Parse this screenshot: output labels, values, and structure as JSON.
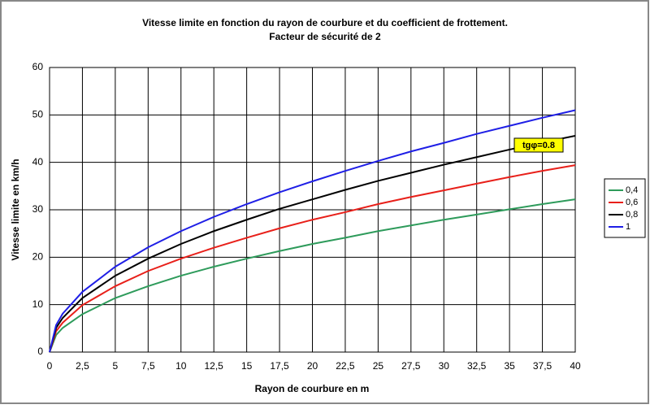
{
  "chart_data": {
    "type": "line",
    "title": "Vitesse limite en fonction du rayon de courbure et du coefficient de frottement.",
    "subtitle": "Facteur de sécurité de 2",
    "x_label": "Rayon de courbure en m",
    "y_label": "Vitesse limite  en km/h",
    "annotation": "tgφ=0.8",
    "x": [
      0,
      0.5,
      1,
      2.5,
      5,
      7.5,
      10,
      12.5,
      15,
      17.5,
      20,
      22.5,
      25,
      27.5,
      30,
      32.5,
      35,
      37.5,
      40
    ],
    "series": [
      {
        "name": "0,4",
        "color": "#2e9b5b",
        "values": [
          0,
          3.6,
          5.1,
          8.0,
          11.4,
          13.9,
          16.1,
          18.0,
          19.7,
          21.3,
          22.8,
          24.1,
          25.5,
          26.7,
          27.9,
          29.0,
          30.1,
          31.2,
          32.2
        ]
      },
      {
        "name": "0,6",
        "color": "#e8201a",
        "values": [
          0,
          4.4,
          6.2,
          9.9,
          13.9,
          17.1,
          19.7,
          22.0,
          24.1,
          26.1,
          27.9,
          29.5,
          31.2,
          32.7,
          34.1,
          35.5,
          36.9,
          38.2,
          39.4
        ]
      },
      {
        "name": "0,8",
        "color": "#000000",
        "values": [
          0,
          5.1,
          7.2,
          11.4,
          16.1,
          19.7,
          22.8,
          25.5,
          27.9,
          30.2,
          32.2,
          34.2,
          36.1,
          37.8,
          39.5,
          41.1,
          42.7,
          44.2,
          45.6
        ]
      },
      {
        "name": "1",
        "color": "#1f1fe6",
        "values": [
          0,
          5.7,
          8.1,
          12.7,
          18.0,
          22.1,
          25.5,
          28.5,
          31.2,
          33.7,
          36.0,
          38.2,
          40.3,
          42.3,
          44.1,
          46.0,
          47.7,
          49.4,
          51.0
        ]
      }
    ],
    "xlim": [
      0,
      40
    ],
    "xticks": [
      0,
      {
        "value": 2.5,
        "label": "2,5"
      },
      5,
      {
        "value": 7.5,
        "label": "7,5"
      },
      10,
      {
        "value": 12.5,
        "label": "12,5"
      },
      15,
      {
        "value": 17.5,
        "label": "17,5"
      },
      20,
      {
        "value": 22.5,
        "label": "22,5"
      },
      25,
      {
        "value": 27.5,
        "label": "27,5"
      },
      30,
      {
        "value": 32.5,
        "label": "32,5"
      },
      35,
      {
        "value": 37.5,
        "label": "37,5"
      },
      40
    ],
    "ylim": [
      0,
      60
    ],
    "yticks": [
      0,
      10,
      20,
      30,
      40,
      50,
      60
    ],
    "grid": true,
    "legend": "right"
  }
}
